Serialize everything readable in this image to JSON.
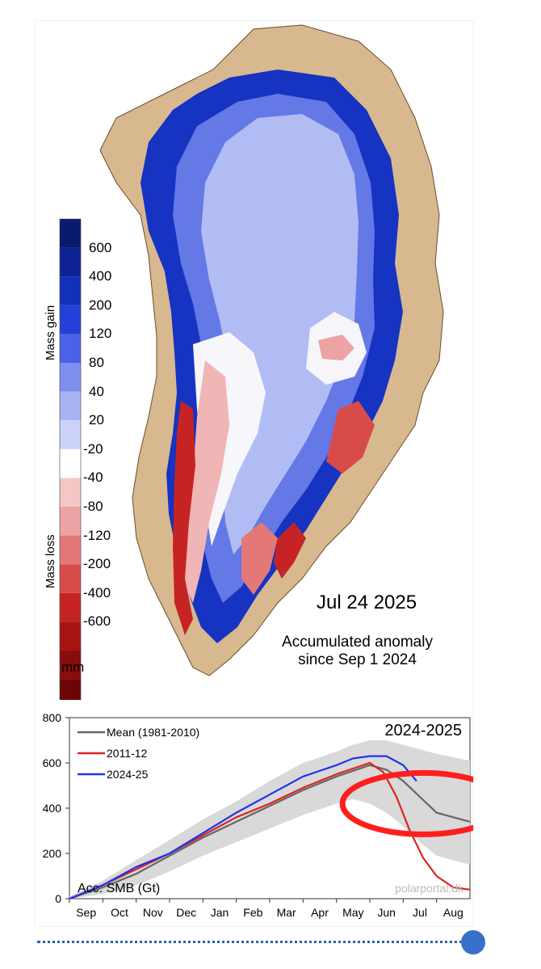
{
  "map": {
    "date": "Jul 24 2025",
    "caption_line1": "Accumulated anomaly",
    "caption_line2": "since Sep 1 2024",
    "colorbar": {
      "gain_title": "Mass gain",
      "loss_title": "Mass loss",
      "unit": "mm",
      "labels": [
        "600",
        "400",
        "200",
        "120",
        "80",
        "40",
        "20",
        "-20",
        "-40",
        "-80",
        "-120",
        "-200",
        "-400",
        "-600"
      ],
      "colors": [
        "#0a1a6e",
        "#0f2294",
        "#1330b8",
        "#2440d8",
        "#4a62e8",
        "#7e8fee",
        "#a8b3f3",
        "#cdd3f8",
        "#ffffff",
        "#f4c7c7",
        "#eda3a3",
        "#e47878",
        "#d84b4b",
        "#c62424",
        "#a81414",
        "#8a0d0d",
        "#6b0606"
      ]
    }
  },
  "chart_data": {
    "type": "line",
    "title": "2024-2025",
    "ylabel": "Acc. SMB (Gt)",
    "watermark": "polarportal.dk",
    "months": [
      "Sep",
      "Oct",
      "Nov",
      "Dec",
      "Jan",
      "Feb",
      "Mar",
      "Apr",
      "May",
      "Jun",
      "Jul",
      "Aug"
    ],
    "ylim": [
      0,
      800
    ],
    "yticks": [
      "0",
      "200",
      "400",
      "600",
      "800"
    ],
    "legend": [
      "Mean (1981-2010)",
      "2011-12",
      "2024-25"
    ],
    "series": [
      {
        "name": "Mean (1981-2010)",
        "color": "#666666",
        "x": [
          0,
          1,
          2,
          3,
          4,
          5,
          6,
          7,
          8,
          9,
          9.5,
          10,
          10.5,
          11,
          12
        ],
        "values": [
          0,
          50,
          110,
          190,
          270,
          340,
          410,
          480,
          540,
          590,
          570,
          520,
          450,
          380,
          340
        ]
      },
      {
        "name": "2011-12",
        "color": "#dd2222",
        "x": [
          0,
          1,
          2,
          3,
          4,
          5,
          6,
          7,
          8,
          9,
          9.4,
          9.8,
          10.2,
          10.6,
          11,
          11.5,
          12
        ],
        "values": [
          0,
          60,
          130,
          200,
          280,
          360,
          420,
          490,
          550,
          600,
          560,
          450,
          300,
          180,
          100,
          50,
          40
        ]
      },
      {
        "name": "2024-25",
        "color": "#2233ee",
        "x": [
          0,
          1,
          2,
          3,
          4,
          5,
          6,
          7,
          8,
          8.5,
          9,
          9.5,
          10,
          10.4
        ],
        "values": [
          0,
          60,
          140,
          200,
          290,
          380,
          460,
          540,
          590,
          620,
          630,
          630,
          590,
          520
        ]
      }
    ],
    "range_band": {
      "x": [
        0,
        1,
        2,
        3,
        4,
        5,
        6,
        7,
        8,
        8.5,
        9,
        9.5,
        10,
        10.5,
        11,
        12
      ],
      "upper": [
        10,
        80,
        170,
        260,
        350,
        430,
        520,
        600,
        650,
        680,
        700,
        700,
        680,
        660,
        640,
        610
      ],
      "lower": [
        0,
        20,
        60,
        120,
        190,
        250,
        310,
        370,
        420,
        440,
        420,
        380,
        320,
        250,
        190,
        150
      ]
    }
  },
  "slider": {
    "progress": 1.0
  }
}
